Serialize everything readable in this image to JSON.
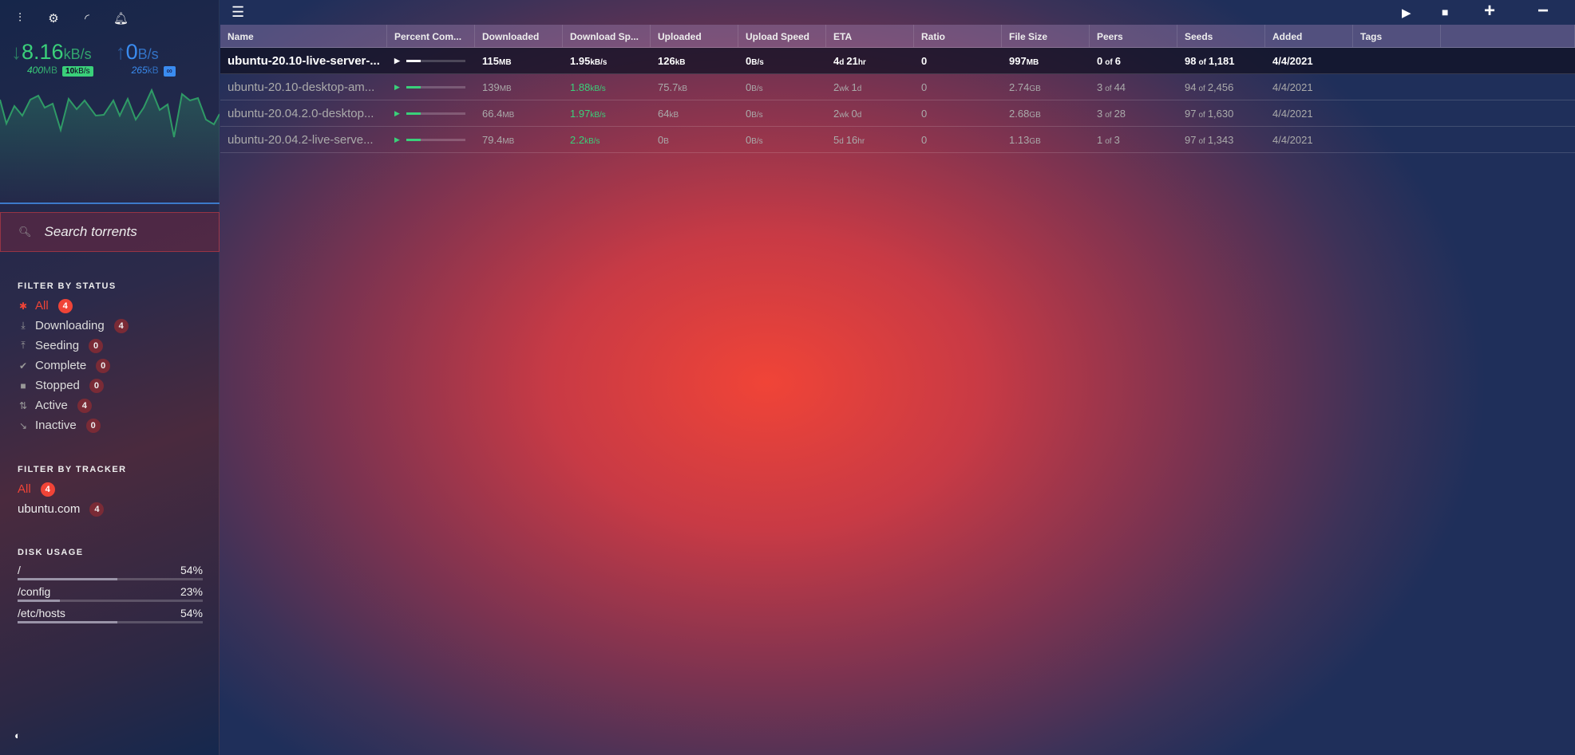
{
  "sidebar": {
    "icons": [
      "mixer-icon",
      "gear-icon",
      "rss-icon",
      "bell-icon"
    ],
    "download": {
      "speed": "8.16",
      "unit": "kB/s",
      "total": "400",
      "total_unit": "MB",
      "limit": "10",
      "limit_unit": "kB/s"
    },
    "upload": {
      "speed": "0",
      "unit": "B/s",
      "total": "265",
      "total_unit": "kB",
      "limit": "∞"
    },
    "search_placeholder": "Search torrents",
    "status_heading": "FILTER BY STATUS",
    "status": [
      {
        "label": "All",
        "count": "4",
        "icon": "asterisk-icon",
        "active": true
      },
      {
        "label": "Downloading",
        "count": "4",
        "icon": "download-icon"
      },
      {
        "label": "Seeding",
        "count": "0",
        "icon": "upload-icon"
      },
      {
        "label": "Complete",
        "count": "0",
        "icon": "check-icon"
      },
      {
        "label": "Stopped",
        "count": "0",
        "icon": "stop-icon"
      },
      {
        "label": "Active",
        "count": "4",
        "icon": "transfer-icon"
      },
      {
        "label": "Inactive",
        "count": "0",
        "icon": "inactive-icon"
      }
    ],
    "tracker_heading": "FILTER BY TRACKER",
    "trackers": [
      {
        "label": "All",
        "count": "4",
        "active": true
      },
      {
        "label": "ubuntu.com",
        "count": "4"
      }
    ],
    "disk_heading": "DISK USAGE",
    "disks": [
      {
        "path": "/",
        "pct": "54%",
        "value": 54
      },
      {
        "path": "/config",
        "pct": "23%",
        "value": 23
      },
      {
        "path": "/etc/hosts",
        "pct": "54%",
        "value": 54
      }
    ]
  },
  "colors": {
    "accent": "#f04437",
    "download": "#3ad07a",
    "upload": "#3a8cf0"
  },
  "table": {
    "columns": [
      "Name",
      "Percent Com...",
      "Downloaded",
      "Download Sp...",
      "Uploaded",
      "Upload Speed",
      "ETA",
      "Ratio",
      "File Size",
      "Peers",
      "Seeds",
      "Added",
      "Tags"
    ],
    "rows": [
      {
        "name": "ubuntu-20.10-live-server-...",
        "progress": 11.5,
        "dl": "115",
        "dl_u": "MB",
        "dls": "1.95",
        "dls_u": "kB/s",
        "ul": "126",
        "ul_u": "kB",
        "uls": "0",
        "uls_u": "B/s",
        "eta1": "4",
        "eta1_u": "d",
        "eta2": "21",
        "eta2_u": "hr",
        "ratio": "0",
        "size": "997",
        "size_u": "MB",
        "peers": "0",
        "peers_t": "6",
        "seeds": "98",
        "seeds_t": "1,181",
        "added": "4/4/2021",
        "selected": true
      },
      {
        "name": "ubuntu-20.10-desktop-am...",
        "progress": 5,
        "dl": "139",
        "dl_u": "MB",
        "dls": "1.88",
        "dls_u": "kB/s",
        "ul": "75.7",
        "ul_u": "kB",
        "uls": "0",
        "uls_u": "B/s",
        "eta1": "2",
        "eta1_u": "wk",
        "eta2": "1",
        "eta2_u": "d",
        "ratio": "0",
        "size": "2.74",
        "size_u": "GB",
        "peers": "3",
        "peers_t": "44",
        "seeds": "94",
        "seeds_t": "2,456",
        "added": "4/4/2021"
      },
      {
        "name": "ubuntu-20.04.2.0-desktop...",
        "progress": 2.5,
        "dl": "66.4",
        "dl_u": "MB",
        "dls": "1.97",
        "dls_u": "kB/s",
        "ul": "64",
        "ul_u": "kB",
        "uls": "0",
        "uls_u": "B/s",
        "eta1": "2",
        "eta1_u": "wk",
        "eta2": "0",
        "eta2_u": "d",
        "ratio": "0",
        "size": "2.68",
        "size_u": "GB",
        "peers": "3",
        "peers_t": "28",
        "seeds": "97",
        "seeds_t": "1,630",
        "added": "4/4/2021"
      },
      {
        "name": "ubuntu-20.04.2-live-serve...",
        "progress": 7,
        "dl": "79.4",
        "dl_u": "MB",
        "dls": "2.2",
        "dls_u": "kB/s",
        "ul": "0",
        "ul_u": "B",
        "uls": "0",
        "uls_u": "B/s",
        "eta1": "5",
        "eta1_u": "d",
        "eta2": "16",
        "eta2_u": "hr",
        "ratio": "0",
        "size": "1.13",
        "size_u": "GB",
        "peers": "1",
        "peers_t": "3",
        "seeds": "97",
        "seeds_t": "1,343",
        "added": "4/4/2021"
      }
    ],
    "of": "of"
  },
  "toolbar": {
    "icons": [
      "menu-icon",
      "start-icon",
      "stop-icon",
      "add-icon",
      "remove-icon"
    ]
  }
}
